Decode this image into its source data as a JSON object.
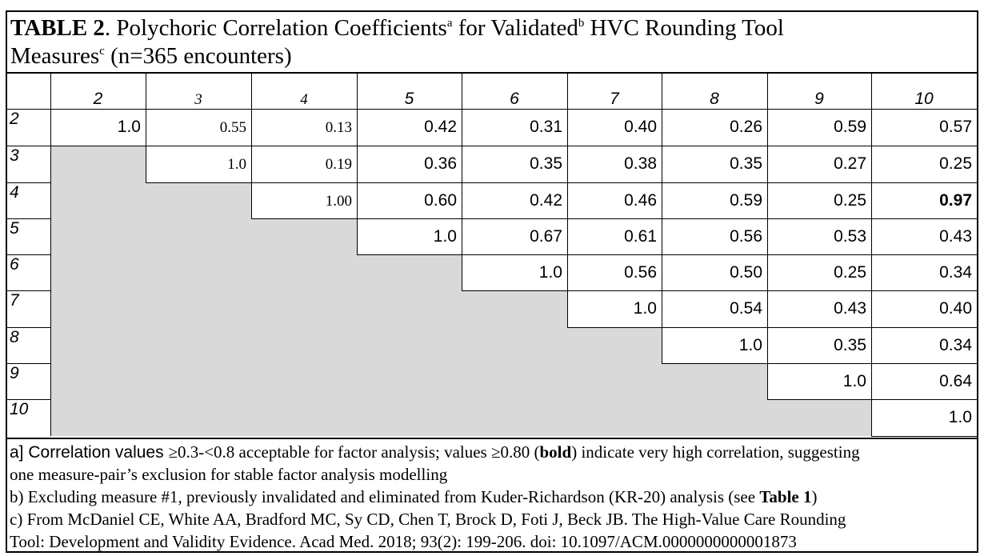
{
  "title": {
    "label": "TABLE 2",
    "text_1": ". Polychoric Correlation Coefficients",
    "sup_a": "a",
    "text_2": " for Validated",
    "sup_b": "b",
    "text_3": " HVC Rounding Tool",
    "text_4": "Measures",
    "sup_c": "c",
    "text_5": " (n=365 encounters)"
  },
  "columns": [
    "2",
    "3",
    "4",
    "5",
    "6",
    "7",
    "8",
    "9",
    "10"
  ],
  "rows": [
    {
      "label": "2",
      "values": [
        "1.0",
        "0.55",
        "0.13",
        "0.42",
        "0.31",
        "0.40",
        "0.26",
        "0.59",
        "0.57"
      ]
    },
    {
      "label": "3",
      "values": [
        "",
        "1.0",
        "0.19",
        "0.36",
        "0.35",
        "0.38",
        "0.35",
        "0.27",
        "0.25"
      ]
    },
    {
      "label": "4",
      "values": [
        "",
        "",
        "1.00",
        "0.60",
        "0.42",
        "0.46",
        "0.59",
        "0.25",
        "0.97"
      ]
    },
    {
      "label": "5",
      "values": [
        "",
        "",
        "",
        "1.0",
        "0.67",
        "0.61",
        "0.56",
        "0.53",
        "0.43"
      ]
    },
    {
      "label": "6",
      "values": [
        "",
        "",
        "",
        "",
        "1.0",
        "0.56",
        "0.50",
        "0.25",
        "0.34"
      ]
    },
    {
      "label": "7",
      "values": [
        "",
        "",
        "",
        "",
        "",
        "1.0",
        "0.54",
        "0.43",
        "0.40"
      ]
    },
    {
      "label": "8",
      "values": [
        "",
        "",
        "",
        "",
        "",
        "",
        "1.0",
        "0.35",
        "0.34"
      ]
    },
    {
      "label": "9",
      "values": [
        "",
        "",
        "",
        "",
        "",
        "",
        "",
        "1.0",
        "0.64"
      ]
    },
    {
      "label": "10",
      "values": [
        "",
        "",
        "",
        "",
        "",
        "",
        "",
        "",
        "1.0"
      ]
    }
  ],
  "notes": {
    "a_line1_sans": "a] Correlation values ",
    "a_line1_rest": "≥0.3-<0.8 acceptable for factor analysis; values ≥0.80 (",
    "a_bold": "bold",
    "a_line1_end": ") indicate very high correlation, suggesting",
    "a_line2": "one measure-pair’s exclusion for stable factor analysis modelling",
    "b_line1": "b) Excluding measure #1, previously invalidated and eliminated from Kuder-Richardson (KR-20) analysis (see ",
    "b_bold": "Table 1",
    "b_end": ")",
    "c_line1": "c) From McDaniel CE, White AA, Bradford MC, Sy CD, Chen T, Brock D, Foti J, Beck JB. The High-Value Care Rounding",
    "c_line2": "Tool: Development and Validity Evidence. Acad Med. 2018; 93(2): 199-206. doi: 10.1097/ACM.0000000000001873"
  }
}
